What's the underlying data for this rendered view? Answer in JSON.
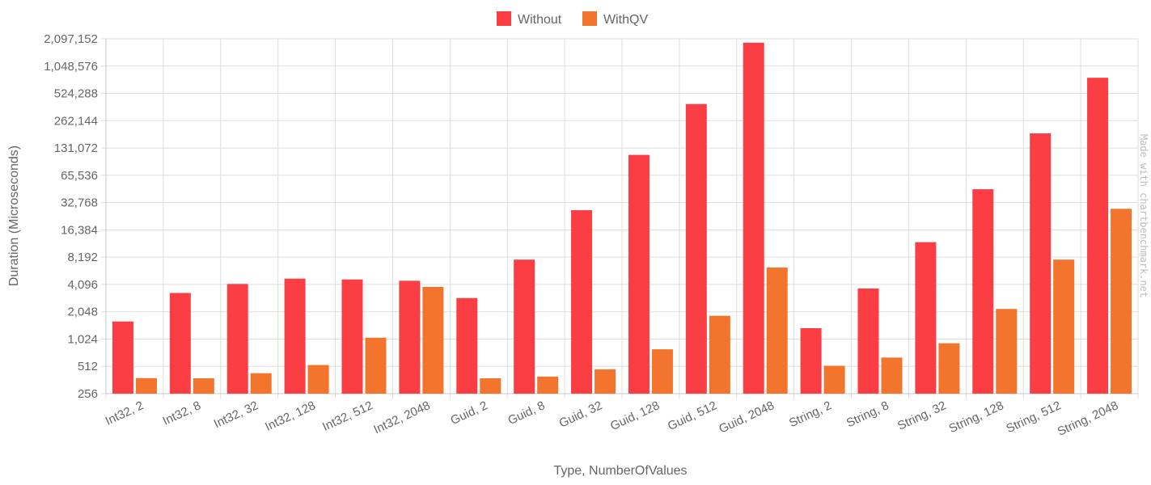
{
  "chart_data": {
    "type": "bar",
    "xlabel": "Type, NumberOfValues",
    "ylabel": "Duration (Microseconds)",
    "y_scale": "log2",
    "ylim": [
      256,
      2097152
    ],
    "y_ticks": [
      "256",
      "512",
      "1,024",
      "2,048",
      "4,096",
      "8,192",
      "16,384",
      "32,768",
      "65,536",
      "131,072",
      "262,144",
      "524,288",
      "1,048,576",
      "2,097,152"
    ],
    "grid": true,
    "legend_position": "top-center",
    "categories": [
      "Int32, 2",
      "Int32, 8",
      "Int32, 32",
      "Int32, 128",
      "Int32, 512",
      "Int32, 2048",
      "Guid, 2",
      "Guid, 8",
      "Guid, 32",
      "Guid, 128",
      "Guid, 512",
      "Guid, 2048",
      "String, 2",
      "String, 8",
      "String, 32",
      "String, 128",
      "String, 512",
      "String, 2048"
    ],
    "series": [
      {
        "name": "Without",
        "color": "#fb3e44",
        "values": [
          1600,
          3300,
          4150,
          4750,
          4650,
          4500,
          2900,
          7700,
          27000,
          110000,
          400000,
          1900000,
          1350,
          3700,
          12000,
          46000,
          190000,
          780000
        ]
      },
      {
        "name": "WithQV",
        "color": "#f3742d",
        "values": [
          380,
          378,
          430,
          530,
          1060,
          3850,
          378,
          395,
          475,
          790,
          1850,
          6300,
          520,
          640,
          920,
          2200,
          7700,
          28000
        ]
      }
    ]
  },
  "watermark": "Made with chartbenchmark.net"
}
